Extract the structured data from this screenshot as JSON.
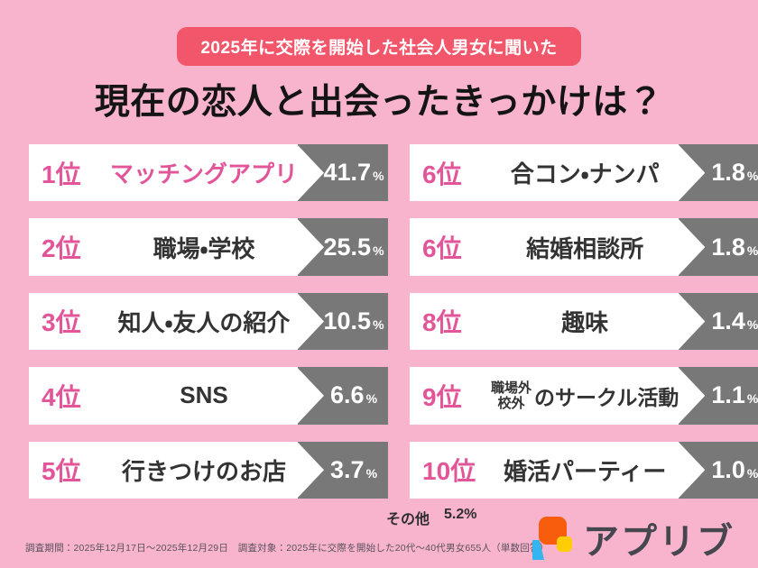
{
  "page": {
    "badge": "2025年に交際を開始した社会人男女に聞いた",
    "title": "現在の恋人と出会ったきっかけは？"
  },
  "colors": {
    "background": "#F8B4CD",
    "badge_bg": "#F2566B",
    "accent_pink": "#E25599",
    "value_box_gray": "#787878",
    "label_text": "#333333",
    "logo_orange": "#F75D0C",
    "logo_yellow": "#FFCD05",
    "logo_blue": "#35B5EF"
  },
  "ranking": {
    "percent_sign": "%",
    "items": [
      {
        "rank": "1位",
        "label": "マッチングアプリ",
        "value": "41.7",
        "highlight": true
      },
      {
        "rank": "2位",
        "label": "職場・学校",
        "value": "25.5"
      },
      {
        "rank": "3位",
        "label": "知人・友人の紹介",
        "value": "10.5"
      },
      {
        "rank": "4位",
        "label": "SNS",
        "value": "6.6"
      },
      {
        "rank": "5位",
        "label": "行きつけのお店",
        "value": "3.7"
      },
      {
        "rank": "6位",
        "label": "合コン・ナンパ",
        "value": "1.8"
      },
      {
        "rank": "6位",
        "label": "結婚相談所",
        "value": "1.8"
      },
      {
        "rank": "8位",
        "label": "趣味",
        "value": "1.4"
      },
      {
        "rank": "9位",
        "label_stacked": [
          "職場外",
          "校外"
        ],
        "label": "のサークル活動",
        "value": "1.1"
      },
      {
        "rank": "10位",
        "label": "婚活パーティー",
        "value": "1.0"
      }
    ],
    "other_label": "その他",
    "other_value": "5.2%"
  },
  "footer": {
    "note": "調査期間：2025年12月17日～2025年12月29日　調査対象：2025年に交際を開始した20代～40代男女655人（単数回答）",
    "logo_text": "アプリブ"
  },
  "chart_data": {
    "type": "bar",
    "title": "現在の恋人と出会ったきっかけは？",
    "subtitle": "2025年に交際を開始した社会人男女に聞いた",
    "categories": [
      "マッチングアプリ",
      "職場・学校",
      "知人・友人の紹介",
      "SNS",
      "行きつけのお店",
      "合コン・ナンパ",
      "結婚相談所",
      "趣味",
      "職場外・校外のサークル活動",
      "婚活パーティー"
    ],
    "values": [
      41.7,
      25.5,
      10.5,
      6.6,
      3.7,
      1.8,
      1.8,
      1.4,
      1.1,
      1.0
    ],
    "ranks": [
      "1位",
      "2位",
      "3位",
      "4位",
      "5位",
      "6位",
      "6位",
      "8位",
      "9位",
      "10位"
    ],
    "other": {
      "label": "その他",
      "value": 5.2
    },
    "unit": "%",
    "legend": "none",
    "layout": "two-column ranking list, ranks 1-5 left column, 6-10 right column"
  }
}
